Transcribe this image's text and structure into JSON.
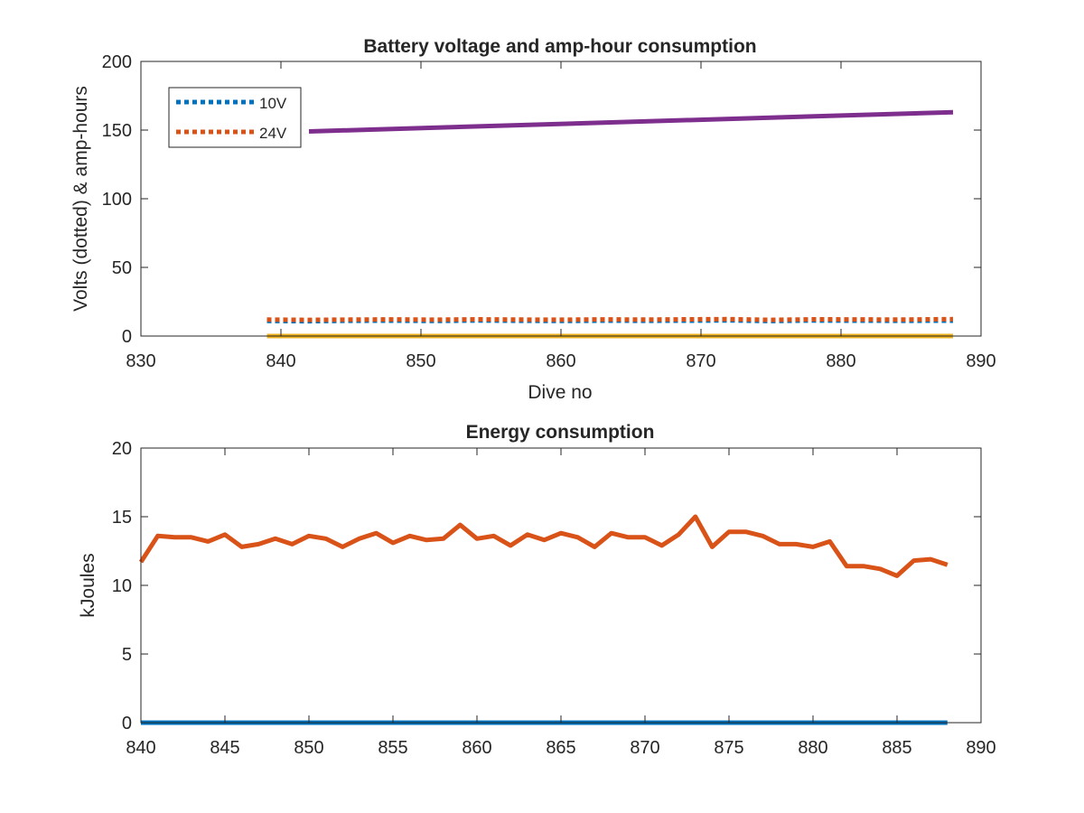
{
  "colors": {
    "blue": "#0072BD",
    "orange": "#D95319",
    "yellow": "#EDB120",
    "purple": "#7E2F8E",
    "axis": "#262626"
  },
  "chart_data": [
    {
      "type": "line",
      "title": "Battery voltage and amp-hour consumption",
      "xlabel": "Dive no",
      "ylabel": "Volts (dotted) & amp-hours",
      "xlim": [
        830,
        890
      ],
      "ylim": [
        0,
        200
      ],
      "xticks": [
        830,
        840,
        850,
        860,
        870,
        880,
        890
      ],
      "yticks": [
        0,
        50,
        100,
        150,
        200
      ],
      "grid": false,
      "legend": {
        "placement": "top-left",
        "entries": [
          "10V",
          "24V"
        ]
      },
      "series": [
        {
          "name": "10V",
          "style": "dotted",
          "color_key": "blue",
          "x": [
            839,
            842,
            845,
            848,
            851,
            854,
            857,
            860,
            863,
            866,
            869,
            872,
            875,
            878,
            881,
            884,
            888
          ],
          "y": [
            11,
            10.8,
            11.1,
            11.2,
            11,
            11.3,
            11.1,
            11,
            11.2,
            11.1,
            11.2,
            11.4,
            10.9,
            11.3,
            11.2,
            11.1,
            11.2
          ]
        },
        {
          "name": "24V",
          "style": "dotted",
          "color_key": "orange",
          "x": [
            839,
            842,
            845,
            848,
            851,
            854,
            857,
            860,
            863,
            866,
            869,
            872,
            875,
            878,
            881,
            884,
            888
          ],
          "y": [
            12,
            11.8,
            12,
            12.1,
            11.9,
            12.2,
            12,
            11.9,
            12.1,
            12,
            12.2,
            12.3,
            11.8,
            12.2,
            12.1,
            12,
            12.3
          ]
        },
        {
          "style": "solid",
          "color_key": "purple",
          "x": [
            842,
            888
          ],
          "y": [
            149,
            163
          ]
        },
        {
          "style": "solid",
          "color_key": "yellow",
          "x": [
            839,
            888
          ],
          "y": [
            0,
            0
          ]
        }
      ]
    },
    {
      "type": "line",
      "title": "Energy consumption",
      "xlabel": "",
      "ylabel": "kJoules",
      "xlim": [
        840,
        890
      ],
      "ylim": [
        0,
        20
      ],
      "xticks": [
        840,
        845,
        850,
        855,
        860,
        865,
        870,
        875,
        880,
        885,
        890
      ],
      "yticks": [
        0,
        5,
        10,
        15,
        20
      ],
      "grid": false,
      "series": [
        {
          "style": "solid",
          "color_key": "orange",
          "x": [
            840,
            841,
            842,
            843,
            844,
            845,
            846,
            847,
            848,
            849,
            850,
            851,
            852,
            853,
            854,
            855,
            856,
            857,
            858,
            859,
            860,
            861,
            862,
            863,
            864,
            865,
            866,
            867,
            868,
            869,
            870,
            871,
            872,
            873,
            874,
            875,
            876,
            877,
            878,
            879,
            880,
            881,
            882,
            883,
            884,
            885,
            886,
            887,
            888
          ],
          "y": [
            11.7,
            13.6,
            13.5,
            13.5,
            13.2,
            13.7,
            12.8,
            13.0,
            13.4,
            13.0,
            13.6,
            13.4,
            12.8,
            13.4,
            13.8,
            13.1,
            13.6,
            13.3,
            13.4,
            14.4,
            13.4,
            13.6,
            12.9,
            13.7,
            13.3,
            13.8,
            13.5,
            12.8,
            13.8,
            13.5,
            13.5,
            12.9,
            13.7,
            15.0,
            12.8,
            13.9,
            13.9,
            13.6,
            13.0,
            13.0,
            12.8,
            13.2,
            11.4,
            11.4,
            11.2,
            10.7,
            11.8,
            11.9,
            11.5
          ]
        },
        {
          "style": "solid",
          "color_key": "blue",
          "x": [
            840,
            888
          ],
          "y": [
            0,
            0
          ]
        }
      ]
    }
  ]
}
